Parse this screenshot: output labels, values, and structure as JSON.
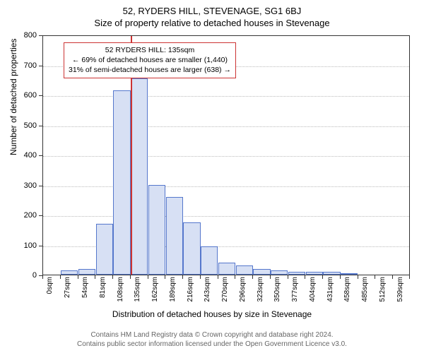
{
  "titles": {
    "main": "52, RYDERS HILL, STEVENAGE, SG1 6BJ",
    "sub": "Size of property relative to detached houses in Stevenage"
  },
  "chart": {
    "type": "histogram",
    "y_label": "Number of detached properties",
    "x_label": "Distribution of detached houses by size in Stevenage",
    "ylim": [
      0,
      800
    ],
    "ytick_step": 100,
    "x_categories": [
      "0sqm",
      "27sqm",
      "54sqm",
      "81sqm",
      "108sqm",
      "135sqm",
      "162sqm",
      "189sqm",
      "216sqm",
      "243sqm",
      "270sqm",
      "296sqm",
      "323sqm",
      "350sqm",
      "377sqm",
      "404sqm",
      "431sqm",
      "458sqm",
      "485sqm",
      "512sqm",
      "539sqm"
    ],
    "values": [
      0,
      15,
      18,
      170,
      615,
      655,
      300,
      260,
      175,
      95,
      40,
      30,
      20,
      15,
      10,
      10,
      10,
      5,
      0,
      0,
      0
    ],
    "bar_fill": "#d7e0f4",
    "bar_border": "#5577cc",
    "grid_color": "#bbbbbb",
    "background_color": "#ffffff",
    "axis_color": "#333333",
    "marker": {
      "x_index": 5,
      "color": "#cc3333"
    },
    "annotation": {
      "line1": "52 RYDERS HILL: 135sqm",
      "line2": "← 69% of detached houses are smaller (1,440)",
      "line3": "31% of semi-detached houses are larger (638) →",
      "border_color": "#cc3333"
    }
  },
  "footer": {
    "line1": "Contains HM Land Registry data © Crown copyright and database right 2024.",
    "line2": "Contains public sector information licensed under the Open Government Licence v3.0."
  }
}
